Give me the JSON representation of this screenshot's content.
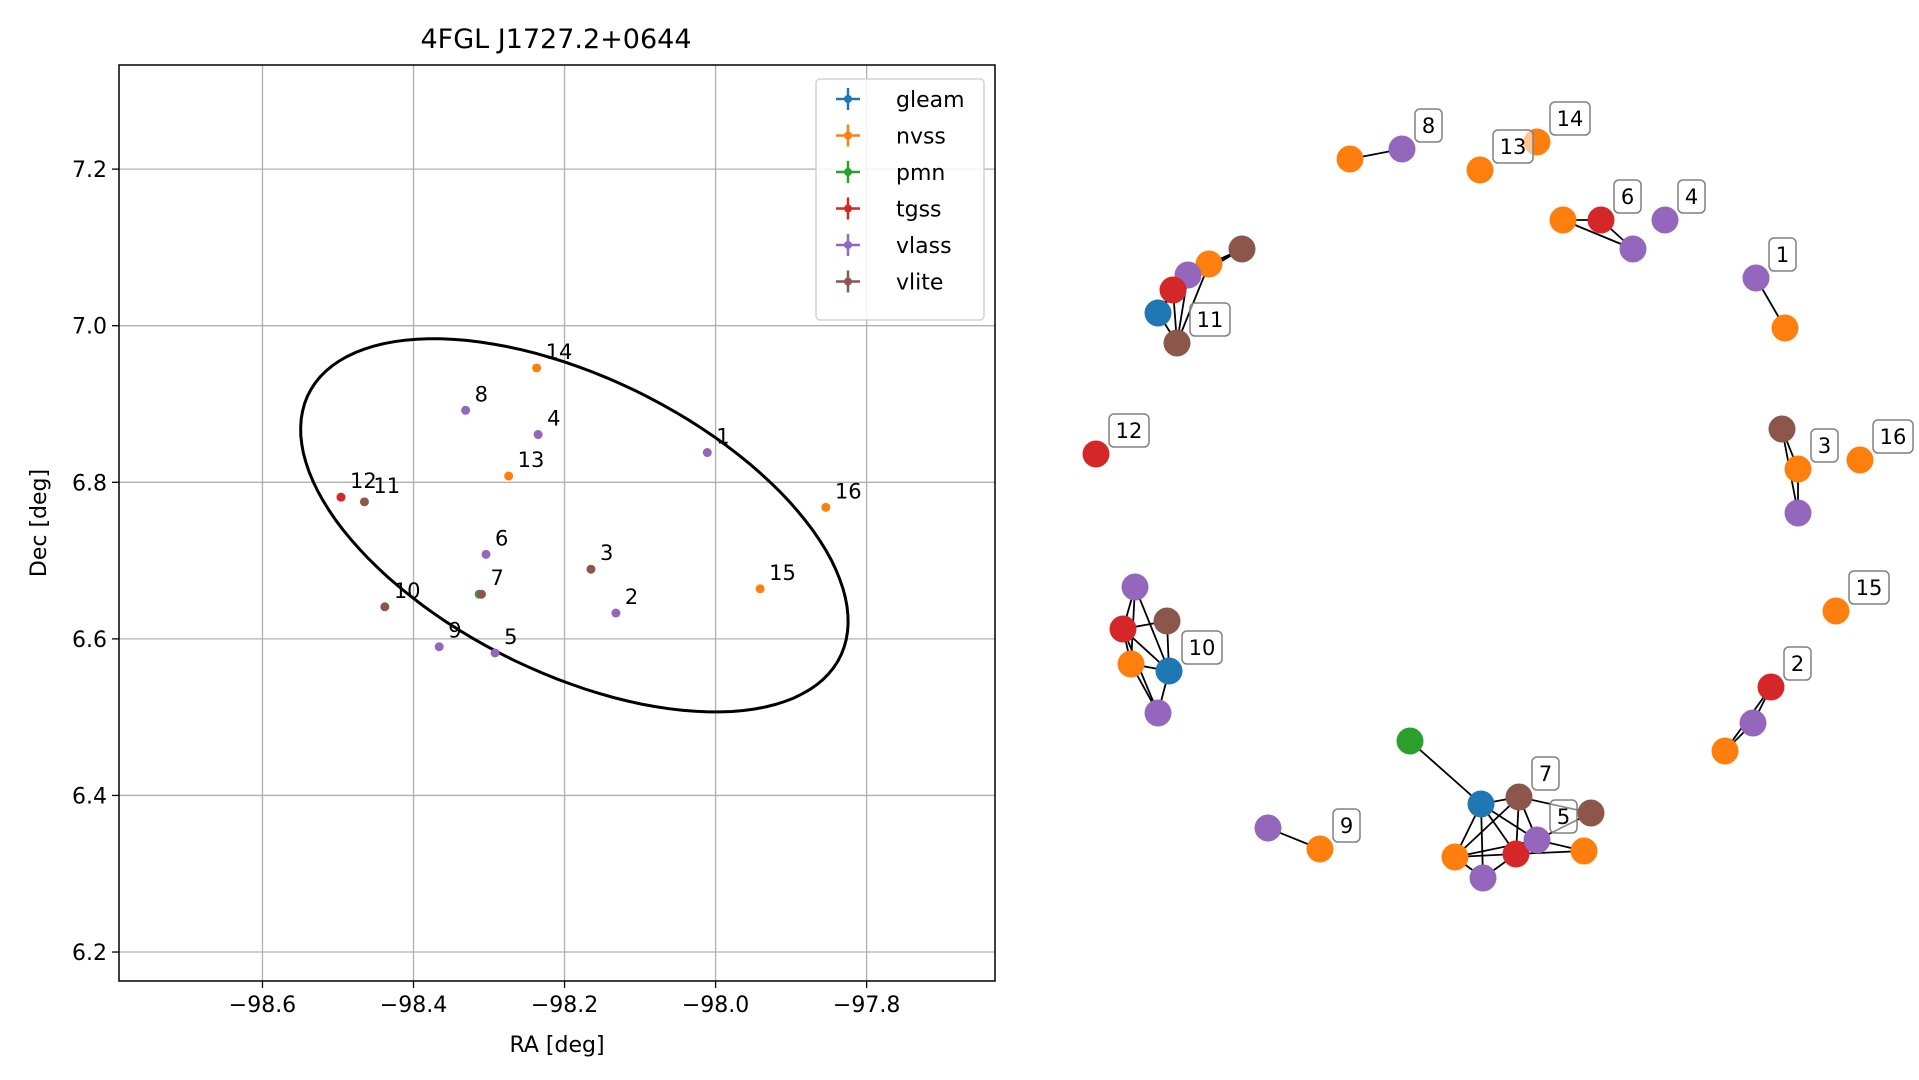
{
  "chart_data": [
    {
      "type": "scatter",
      "title": "4FGL J1727.2+0644",
      "xlabel": "RA [deg]",
      "ylabel": "Dec [deg]",
      "xlim": [
        -98.79,
        -97.63
      ],
      "ylim": [
        6.163,
        7.333
      ],
      "xticks": [
        -98.6,
        -98.4,
        -98.2,
        -98.0,
        -97.8
      ],
      "xtick_labels": [
        "−98.6",
        "−98.4",
        "−98.2",
        "−98.0",
        "−97.8"
      ],
      "yticks": [
        6.2,
        6.4,
        6.6,
        6.8,
        7.0,
        7.2
      ],
      "ytick_labels": [
        "6.2",
        "6.4",
        "6.6",
        "6.8",
        "7.0",
        "7.2"
      ],
      "grid": true,
      "legend_position": "top-right",
      "ellipse": {
        "center": [
          -98.187,
          6.745
        ],
        "semi_major": 0.39,
        "semi_minor": 0.19,
        "angle_deg": -25,
        "color": "#000000"
      },
      "series": [
        {
          "name": "gleam",
          "color": "#1f77b4",
          "points": []
        },
        {
          "name": "nvss",
          "color": "#ff7f0e",
          "points": [
            {
              "x": -98.237,
              "y": 6.946
            },
            {
              "x": -98.274,
              "y": 6.808
            },
            {
              "x": -97.854,
              "y": 6.768
            },
            {
              "x": -97.941,
              "y": 6.664
            }
          ]
        },
        {
          "name": "pmn",
          "color": "#2ca02c",
          "points": [
            {
              "x": -98.313,
              "y": 6.657
            }
          ]
        },
        {
          "name": "tgss",
          "color": "#d62728",
          "points": [
            {
              "x": -98.496,
              "y": 6.781
            }
          ]
        },
        {
          "name": "vlass",
          "color": "#9467bd",
          "points": [
            {
              "x": -98.331,
              "y": 6.892
            },
            {
              "x": -98.235,
              "y": 6.861
            },
            {
              "x": -98.011,
              "y": 6.838
            },
            {
              "x": -98.304,
              "y": 6.708
            },
            {
              "x": -98.132,
              "y": 6.633
            },
            {
              "x": -98.366,
              "y": 6.59
            },
            {
              "x": -98.292,
              "y": 6.582
            }
          ]
        },
        {
          "name": "vlite",
          "color": "#8c564b",
          "points": [
            {
              "x": -98.465,
              "y": 6.775
            },
            {
              "x": -98.165,
              "y": 6.689
            },
            {
              "x": -98.438,
              "y": 6.641
            },
            {
              "x": -98.31,
              "y": 6.657
            }
          ]
        }
      ],
      "point_labels": [
        {
          "text": "14",
          "x": -98.237,
          "y": 6.946
        },
        {
          "text": "8",
          "x": -98.331,
          "y": 6.892
        },
        {
          "text": "4",
          "x": -98.235,
          "y": 6.861
        },
        {
          "text": "1",
          "x": -98.011,
          "y": 6.838
        },
        {
          "text": "13",
          "x": -98.274,
          "y": 6.808
        },
        {
          "text": "12",
          "x": -98.496,
          "y": 6.781
        },
        {
          "text": "11",
          "x": -98.465,
          "y": 6.775
        },
        {
          "text": "16",
          "x": -97.854,
          "y": 6.768
        },
        {
          "text": "6",
          "x": -98.304,
          "y": 6.708
        },
        {
          "text": "3",
          "x": -98.165,
          "y": 6.689
        },
        {
          "text": "7",
          "x": -98.31,
          "y": 6.657
        },
        {
          "text": "15",
          "x": -97.941,
          "y": 6.664
        },
        {
          "text": "10",
          "x": -98.438,
          "y": 6.641
        },
        {
          "text": "2",
          "x": -98.132,
          "y": 6.633
        },
        {
          "text": "9",
          "x": -98.366,
          "y": 6.59
        },
        {
          "text": "5",
          "x": -98.292,
          "y": 6.582
        }
      ]
    },
    {
      "type": "network",
      "colors": {
        "gleam": "#1f77b4",
        "nvss": "#ff7f0e",
        "pmn": "#2ca02c",
        "tgss": "#d62728",
        "vlass": "#9467bd",
        "vlite": "#8c564b"
      },
      "nodes": [
        {
          "id": "8a",
          "catalog": "nvss"
        },
        {
          "id": "8b",
          "catalog": "vlass",
          "label": "8"
        },
        {
          "id": "13a",
          "catalog": "nvss",
          "label": "13"
        },
        {
          "id": "14a",
          "catalog": "nvss",
          "label": "14"
        },
        {
          "id": "6a",
          "catalog": "nvss"
        },
        {
          "id": "6b",
          "catalog": "tgss",
          "label": "6"
        },
        {
          "id": "6c",
          "catalog": "vlass"
        },
        {
          "id": "4a",
          "catalog": "vlass",
          "label": "4"
        },
        {
          "id": "1a",
          "catalog": "vlass",
          "label": "1"
        },
        {
          "id": "1b",
          "catalog": "nvss"
        },
        {
          "id": "11a",
          "catalog": "vlite"
        },
        {
          "id": "11b",
          "catalog": "nvss"
        },
        {
          "id": "11c",
          "catalog": "vlass"
        },
        {
          "id": "11d",
          "catalog": "tgss"
        },
        {
          "id": "11e",
          "catalog": "gleam"
        },
        {
          "id": "11f",
          "catalog": "vlite",
          "label": "11"
        },
        {
          "id": "12a",
          "catalog": "tgss",
          "label": "12"
        },
        {
          "id": "3a",
          "catalog": "vlite"
        },
        {
          "id": "3b",
          "catalog": "nvss",
          "label": "3"
        },
        {
          "id": "3c",
          "catalog": "vlass"
        },
        {
          "id": "16a",
          "catalog": "nvss",
          "label": "16"
        },
        {
          "id": "15a",
          "catalog": "nvss",
          "label": "15"
        },
        {
          "id": "10a",
          "catalog": "vlass"
        },
        {
          "id": "10b",
          "catalog": "vlite"
        },
        {
          "id": "10c",
          "catalog": "tgss"
        },
        {
          "id": "10d",
          "catalog": "nvss"
        },
        {
          "id": "10e",
          "catalog": "gleam",
          "label": "10"
        },
        {
          "id": "10f",
          "catalog": "vlass"
        },
        {
          "id": "2a",
          "catalog": "tgss",
          "label": "2"
        },
        {
          "id": "2b",
          "catalog": "vlass"
        },
        {
          "id": "2c",
          "catalog": "nvss"
        },
        {
          "id": "9a",
          "catalog": "vlass"
        },
        {
          "id": "9b",
          "catalog": "nvss",
          "label": "9"
        },
        {
          "id": "7a",
          "catalog": "pmn"
        },
        {
          "id": "7b",
          "catalog": "gleam"
        },
        {
          "id": "7c",
          "catalog": "vlite",
          "label": "7"
        },
        {
          "id": "7d",
          "catalog": "vlite"
        },
        {
          "id": "7e",
          "catalog": "nvss"
        },
        {
          "id": "7f",
          "catalog": "tgss"
        },
        {
          "id": "7g",
          "catalog": "vlass",
          "label": "5"
        },
        {
          "id": "7h",
          "catalog": "nvss"
        },
        {
          "id": "7i",
          "catalog": "vlass"
        }
      ],
      "edges": [
        [
          "8a",
          "8b"
        ],
        [
          "6a",
          "6b"
        ],
        [
          "6a",
          "6c"
        ],
        [
          "6b",
          "6c"
        ],
        [
          "1a",
          "1b"
        ],
        [
          "11a",
          "11b"
        ],
        [
          "11a",
          "11c"
        ],
        [
          "11a",
          "11d"
        ],
        [
          "11b",
          "11f"
        ],
        [
          "11c",
          "11d"
        ],
        [
          "11c",
          "11f"
        ],
        [
          "11d",
          "11e"
        ],
        [
          "11d",
          "11f"
        ],
        [
          "11e",
          "11f"
        ],
        [
          "11c",
          "11e"
        ],
        [
          "3a",
          "3b"
        ],
        [
          "3b",
          "3c"
        ],
        [
          "3a",
          "3c"
        ],
        [
          "10a",
          "10c"
        ],
        [
          "10a",
          "10d"
        ],
        [
          "10a",
          "10e"
        ],
        [
          "10b",
          "10c"
        ],
        [
          "10b",
          "10e"
        ],
        [
          "10c",
          "10d"
        ],
        [
          "10c",
          "10e"
        ],
        [
          "10c",
          "10f"
        ],
        [
          "10d",
          "10f"
        ],
        [
          "10e",
          "10f"
        ],
        [
          "10d",
          "10e"
        ],
        [
          "2a",
          "2b"
        ],
        [
          "2b",
          "2c"
        ],
        [
          "2a",
          "2c"
        ],
        [
          "9a",
          "9b"
        ],
        [
          "7a",
          "7b"
        ],
        [
          "7b",
          "7c"
        ],
        [
          "7b",
          "7e"
        ],
        [
          "7b",
          "7f"
        ],
        [
          "7b",
          "7g"
        ],
        [
          "7b",
          "7i"
        ],
        [
          "7c",
          "7d"
        ],
        [
          "7c",
          "7e"
        ],
        [
          "7c",
          "7f"
        ],
        [
          "7c",
          "7g"
        ],
        [
          "7d",
          "7g"
        ],
        [
          "7e",
          "7f"
        ],
        [
          "7e",
          "7i"
        ],
        [
          "7f",
          "7g"
        ],
        [
          "7f",
          "7h"
        ],
        [
          "7f",
          "7i"
        ],
        [
          "7g",
          "7h"
        ],
        [
          "7e",
          "7g"
        ]
      ]
    }
  ]
}
